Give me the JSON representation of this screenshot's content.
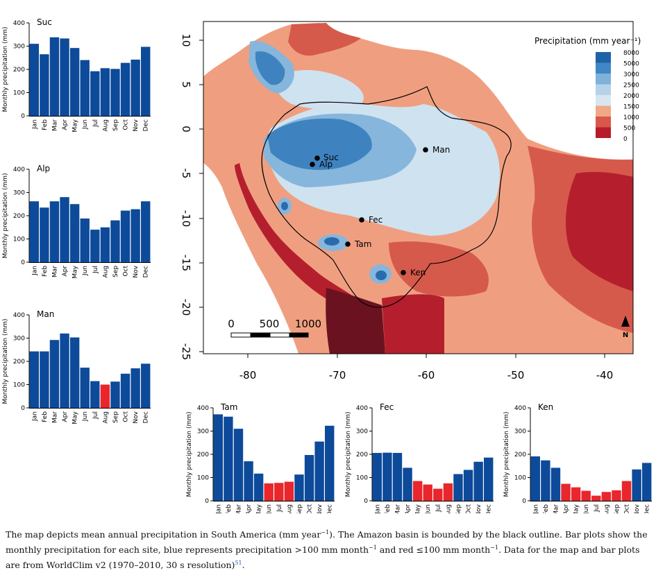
{
  "bar_colors": {
    "wet": "#0d4a9a",
    "dry": "#e8262b"
  },
  "threshold_mm": 100,
  "months": [
    "Jan",
    "Feb",
    "Mar",
    "Apr",
    "May",
    "Jun",
    "Jul",
    "Aug",
    "Sep",
    "Oct",
    "Nov",
    "Dec"
  ],
  "ylabel": "Monthly precipitation (mm)",
  "chart_data": [
    {
      "type": "bar",
      "title": "Suc",
      "ylim": [
        0,
        400
      ],
      "yticks": [
        0,
        100,
        200,
        300,
        400
      ],
      "values": [
        310,
        265,
        338,
        333,
        292,
        240,
        192,
        205,
        202,
        228,
        242,
        297
      ]
    },
    {
      "type": "bar",
      "title": "Alp",
      "ylim": [
        0,
        400
      ],
      "yticks": [
        0,
        100,
        200,
        300,
        400
      ],
      "values": [
        262,
        235,
        262,
        280,
        250,
        188,
        140,
        150,
        180,
        222,
        228,
        262
      ]
    },
    {
      "type": "bar",
      "title": "Man",
      "ylim": [
        0,
        400
      ],
      "yticks": [
        0,
        100,
        200,
        300,
        400
      ],
      "values": [
        243,
        243,
        292,
        320,
        303,
        173,
        115,
        100,
        113,
        147,
        170,
        190
      ]
    },
    {
      "type": "bar",
      "title": "Tam",
      "ylim": [
        0,
        400
      ],
      "yticks": [
        0,
        100,
        200,
        300,
        400
      ],
      "values": [
        372,
        362,
        310,
        170,
        117,
        75,
        77,
        82,
        113,
        197,
        255,
        323
      ]
    },
    {
      "type": "bar",
      "title": "Fec",
      "ylim": [
        0,
        400
      ],
      "yticks": [
        0,
        100,
        200,
        300,
        400
      ],
      "values": [
        206,
        207,
        206,
        142,
        85,
        70,
        52,
        75,
        115,
        133,
        168,
        186
      ]
    },
    {
      "type": "bar",
      "title": "Ken",
      "ylim": [
        0,
        400
      ],
      "yticks": [
        0,
        100,
        200,
        300,
        400
      ],
      "values": [
        191,
        174,
        142,
        73,
        58,
        43,
        22,
        38,
        45,
        85,
        135,
        163
      ]
    }
  ],
  "map": {
    "x_ticks": [
      "-80",
      "-70",
      "-60",
      "-50",
      "-40"
    ],
    "y_ticks": [
      "10",
      "5",
      "0",
      "-5",
      "-10",
      "-15",
      "-20",
      "-25"
    ],
    "sites": [
      "Suc",
      "Alp",
      "Man",
      "Fec",
      "Tam",
      "Ken"
    ],
    "legend_title": "Precipitation (mm year⁻¹)",
    "legend_levels": [
      "8000",
      "5000",
      "3000",
      "2500",
      "2000",
      "1500",
      "1000",
      "500",
      "0"
    ],
    "legend_colors": [
      "#1f63a7",
      "#3f87c6",
      "#7fb1d9",
      "#b5d2e8",
      "#d9e6f0",
      "#f0a887",
      "#d9574a",
      "#b71c2a",
      "#6b0f1d"
    ],
    "scale_labels": [
      "0",
      "500",
      "1000"
    ],
    "north_label": "N",
    "colors": {
      "ocean": "#ffffff",
      "land_orange": "#ef9f80",
      "land_red": "#d65a4b",
      "dark_red": "#b51f2d",
      "darkest": "#6b1220",
      "light_blue": "#cfe2f0",
      "mid_blue": "#86b6dc",
      "blue": "#3f82c0",
      "deep_blue": "#2a6bad"
    }
  },
  "caption": {
    "part1": "The map depicts mean annual precipitation in South America (mm year",
    "sup1": "−1",
    "part2": "). The Amazon basin is bounded by the black outline. Bar plots show the monthly precipitation for each site, blue represents precipitation >100 mm month",
    "sup2": "−1",
    "part3": " and red ≤100 mm month",
    "sup3": "−1",
    "part4": ". Data for the map and bar plots are from WorldClim v2 (1970–2010, 30 s resolution)",
    "ref": "51",
    "part5": "."
  }
}
